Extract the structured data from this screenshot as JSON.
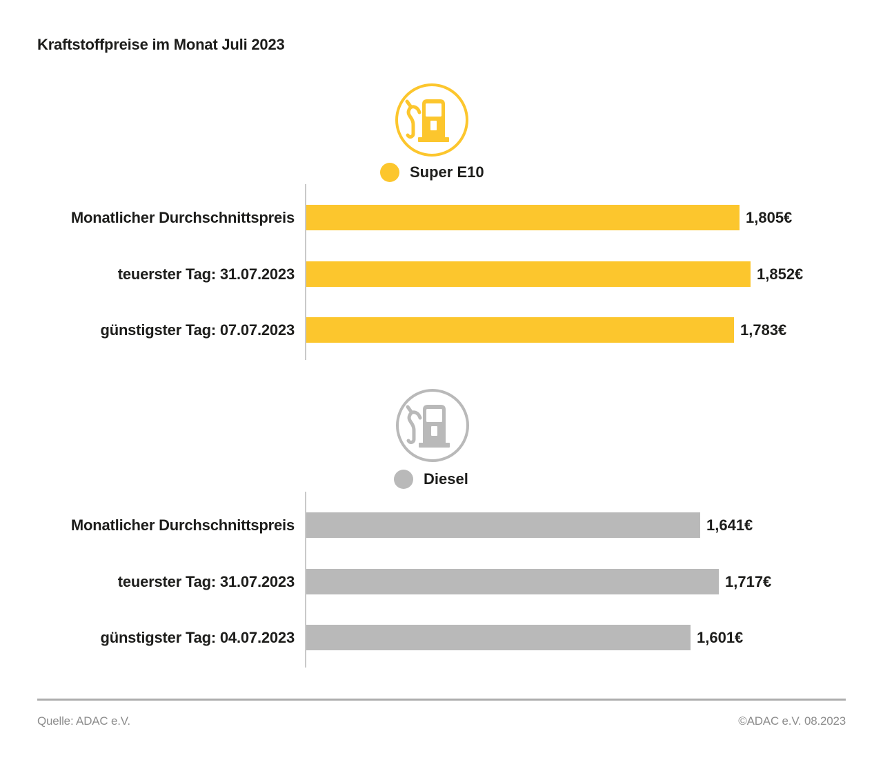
{
  "page_title": "Kraftstoffpreise im Monat Juli 2023",
  "colors": {
    "super_e10_yellow": "#FCC62D",
    "diesel_gray": "#B9B9B9",
    "axis_line_gray": "#C9C9C9",
    "text_black": "#1D1D1B",
    "footer_gray": "#8D8D8D",
    "divider_gray": "#ADADAD"
  },
  "chart_data": [
    {
      "type": "bar",
      "orientation": "horizontal",
      "legend_label": "Super E10",
      "icon": "fuel-pump-icon",
      "color": "#FCC62D",
      "categories": [
        "Monatlicher Durchschnittspreis",
        "teuerster Tag: 31.07.2023",
        "günstigster Tag: 07.07.2023"
      ],
      "values_eur": [
        1.805,
        1.852,
        1.783
      ],
      "value_labels": [
        "1,805€",
        "1,852€",
        "1,783€"
      ],
      "xlim_eur": [
        0,
        2.25
      ],
      "grid": false,
      "legend_position": "top-center"
    },
    {
      "type": "bar",
      "orientation": "horizontal",
      "legend_label": "Diesel",
      "icon": "fuel-pump-icon",
      "color": "#B9B9B9",
      "categories": [
        "Monatlicher Durchschnittspreis",
        "teuerster Tag: 31.07.2023",
        "günstigster Tag: 04.07.2023"
      ],
      "values_eur": [
        1.641,
        1.717,
        1.601
      ],
      "value_labels": [
        "1,641€",
        "1,717€",
        "1,601€"
      ],
      "xlim_eur": [
        0,
        2.25
      ],
      "grid": false,
      "legend_position": "top-center"
    }
  ],
  "footer": {
    "source": "Quelle: ADAC e.V.",
    "copyright": "©ADAC e.V. 08.2023"
  }
}
